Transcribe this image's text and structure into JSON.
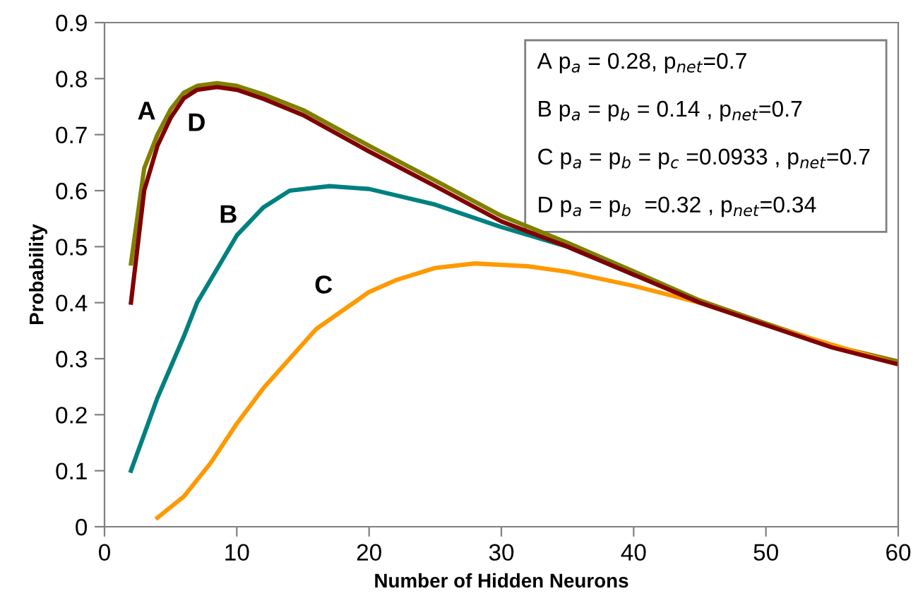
{
  "chart_data": {
    "type": "line",
    "xlabel": "Number of Hidden Neurons",
    "ylabel": "Probability",
    "xlim": [
      0,
      60
    ],
    "xticks": [
      0,
      10,
      20,
      30,
      40,
      50,
      60
    ],
    "ylim": [
      0,
      0.9
    ],
    "yticks": [
      0,
      0.1,
      0.2,
      0.3,
      0.4,
      0.5,
      0.6,
      0.7,
      0.8,
      0.9
    ],
    "grid": false,
    "marker": "none",
    "line_style": "solid",
    "series": [
      {
        "name": "A",
        "color": "#808000",
        "x": [
          2,
          3,
          4,
          5,
          6,
          7,
          8.5,
          10,
          12,
          15,
          20,
          25,
          30,
          35,
          40,
          45,
          50,
          55,
          60
        ],
        "values": [
          0.47,
          0.64,
          0.7,
          0.745,
          0.775,
          0.787,
          0.792,
          0.787,
          0.772,
          0.744,
          0.68,
          0.618,
          0.555,
          0.507,
          0.456,
          0.404,
          0.363,
          0.323,
          0.295
        ]
      },
      {
        "name": "B",
        "color": "#008080",
        "x": [
          2,
          4,
          6,
          7,
          8,
          10,
          12,
          14,
          17,
          20,
          25,
          30,
          35,
          40
        ],
        "values": [
          0.1,
          0.23,
          0.34,
          0.4,
          0.44,
          0.52,
          0.57,
          0.6,
          0.608,
          0.603,
          0.575,
          0.535,
          0.5,
          0.45
        ]
      },
      {
        "name": "C",
        "color": "#ff9900",
        "x": [
          4,
          6,
          8,
          10,
          12,
          14,
          16,
          18,
          20,
          22,
          25,
          28,
          32,
          35,
          40,
          45,
          50,
          55,
          60
        ],
        "values": [
          0.016,
          0.054,
          0.113,
          0.184,
          0.247,
          0.3,
          0.353,
          0.386,
          0.419,
          0.44,
          0.462,
          0.47,
          0.465,
          0.455,
          0.43,
          0.4,
          0.36,
          0.325,
          0.29
        ]
      },
      {
        "name": "D",
        "color": "#800000",
        "x": [
          2,
          3,
          4,
          5,
          6,
          7,
          8.5,
          10,
          12,
          15,
          20,
          25,
          30,
          35,
          40,
          45,
          50,
          55,
          60
        ],
        "values": [
          0.4,
          0.6,
          0.68,
          0.73,
          0.765,
          0.78,
          0.785,
          0.78,
          0.764,
          0.735,
          0.67,
          0.608,
          0.545,
          0.5,
          0.45,
          0.4,
          0.36,
          0.32,
          0.29
        ]
      }
    ],
    "annotations": [
      "A p$_{a}$ = 0.28, p$_{net}$=0.7",
      "B p$_{a}$ = p$_{b}$ = 0.14 , p$_{net}$=0.7",
      "C p$_{a}$ = p$_{b}$ = p$_{c}$ =0.0933 , p$_{net}$=0.7",
      "D p$_{a}$ = p$_{b}$  =0.32 , p$_{net}$=0.34"
    ]
  }
}
